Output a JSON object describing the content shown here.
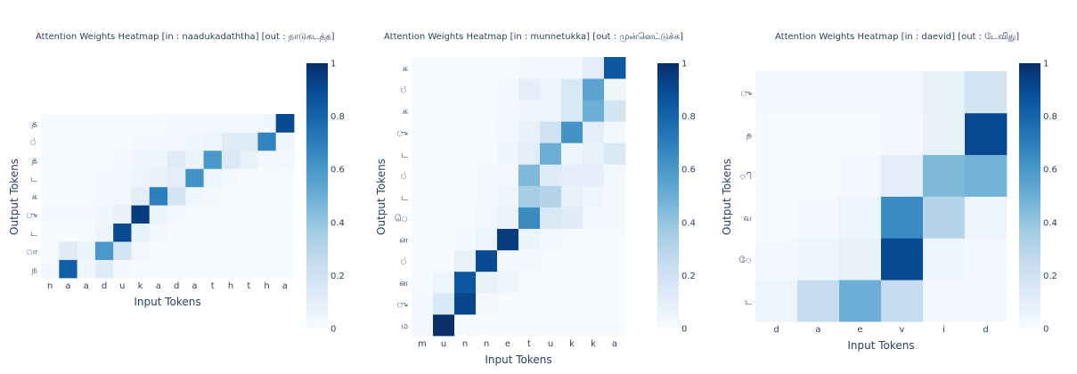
{
  "colorscale": [
    "#f7fbff",
    "#deebf7",
    "#c6dbef",
    "#9ecae1",
    "#6baed6",
    "#4292c6",
    "#2171b5",
    "#08519c",
    "#08306b"
  ],
  "chart_data": [
    {
      "type": "heatmap",
      "title": "Attention Weights Heatmap [in : naadukadaththa] [out : நாடுகடத்த]",
      "xlabel": "Input Tokens",
      "ylabel": "Output Tokens",
      "x": [
        "n",
        "a",
        "a",
        "d",
        "u",
        "k",
        "a",
        "d",
        "a",
        "t",
        "h",
        "t",
        "h",
        "a"
      ],
      "y": [
        "ந",
        "ா",
        "ட",
        "ு",
        "க",
        "ட",
        "த",
        "்",
        "த"
      ],
      "zrange": [
        0,
        1
      ],
      "colorbar_ticks": [
        0,
        0.2,
        0.4,
        0.6,
        0.8,
        1
      ],
      "z": [
        [
          0.02,
          0.82,
          0.04,
          0.12,
          0.02,
          0.01,
          0.01,
          0.01,
          0.01,
          0.01,
          0.01,
          0.01,
          0.01,
          0.01
        ],
        [
          0.01,
          0.12,
          0.06,
          0.6,
          0.18,
          0.03,
          0.01,
          0.01,
          0.01,
          0.01,
          0.01,
          0.01,
          0.01,
          0.01
        ],
        [
          0.01,
          0.01,
          0.01,
          0.05,
          0.9,
          0.08,
          0.02,
          0.01,
          0.01,
          0.01,
          0.01,
          0.01,
          0.01,
          0.01
        ],
        [
          0.02,
          0.02,
          0.02,
          0.04,
          0.08,
          0.95,
          0.06,
          0.02,
          0.01,
          0.01,
          0.01,
          0.01,
          0.01,
          0.01
        ],
        [
          0.01,
          0.01,
          0.01,
          0.02,
          0.03,
          0.1,
          0.7,
          0.18,
          0.04,
          0.02,
          0.01,
          0.01,
          0.01,
          0.01
        ],
        [
          0.01,
          0.01,
          0.01,
          0.02,
          0.03,
          0.05,
          0.08,
          0.1,
          0.62,
          0.05,
          0.02,
          0.01,
          0.01,
          0.01
        ],
        [
          0.01,
          0.01,
          0.01,
          0.01,
          0.02,
          0.04,
          0.05,
          0.12,
          0.06,
          0.6,
          0.14,
          0.08,
          0.02,
          0.03
        ],
        [
          0.01,
          0.01,
          0.01,
          0.01,
          0.01,
          0.02,
          0.02,
          0.03,
          0.04,
          0.05,
          0.12,
          0.12,
          0.68,
          0.04
        ],
        [
          0.01,
          0.01,
          0.01,
          0.01,
          0.01,
          0.01,
          0.01,
          0.02,
          0.02,
          0.03,
          0.03,
          0.02,
          0.04,
          0.9
        ]
      ]
    },
    {
      "type": "heatmap",
      "title": "Attention Weights Heatmap [in : munnetukka] [out : முன்னெட்டுக்க]",
      "xlabel": "Input Tokens",
      "ylabel": "Output Tokens",
      "x": [
        "m",
        "u",
        "n",
        "n",
        "e",
        "t",
        "u",
        "k",
        "k",
        "a"
      ],
      "y": [
        "ம",
        "ு",
        "ன",
        "்",
        "ன",
        "ெ",
        "ட",
        "்",
        "ட",
        "ு",
        "க",
        "்",
        "க"
      ],
      "zrange": [
        0,
        1
      ],
      "colorbar_ticks": [
        0,
        0.2,
        0.4,
        0.6,
        0.8,
        1
      ],
      "z": [
        [
          0.02,
          1.0,
          0.01,
          0.01,
          0.01,
          0.01,
          0.01,
          0.01,
          0.01,
          0.01
        ],
        [
          0.02,
          0.15,
          0.92,
          0.02,
          0.01,
          0.01,
          0.01,
          0.01,
          0.01,
          0.01
        ],
        [
          0.01,
          0.05,
          0.85,
          0.08,
          0.05,
          0.01,
          0.01,
          0.01,
          0.01,
          0.01
        ],
        [
          0.01,
          0.01,
          0.08,
          0.9,
          0.02,
          0.02,
          0.01,
          0.01,
          0.01,
          0.01
        ],
        [
          0.01,
          0.01,
          0.02,
          0.05,
          0.95,
          0.06,
          0.02,
          0.01,
          0.01,
          0.01
        ],
        [
          0.01,
          0.01,
          0.01,
          0.03,
          0.06,
          0.65,
          0.15,
          0.12,
          0.03,
          0.02
        ],
        [
          0.01,
          0.01,
          0.01,
          0.02,
          0.04,
          0.35,
          0.3,
          0.08,
          0.05,
          0.03
        ],
        [
          0.01,
          0.01,
          0.01,
          0.02,
          0.03,
          0.45,
          0.12,
          0.1,
          0.1,
          0.02
        ],
        [
          0.01,
          0.01,
          0.01,
          0.01,
          0.04,
          0.1,
          0.5,
          0.05,
          0.08,
          0.15
        ],
        [
          0.01,
          0.01,
          0.01,
          0.01,
          0.03,
          0.08,
          0.2,
          0.62,
          0.1,
          0.03
        ],
        [
          0.01,
          0.01,
          0.01,
          0.01,
          0.02,
          0.04,
          0.05,
          0.15,
          0.5,
          0.18
        ],
        [
          0.01,
          0.01,
          0.01,
          0.01,
          0.02,
          0.1,
          0.05,
          0.15,
          0.55,
          0.04
        ],
        [
          0.01,
          0.01,
          0.01,
          0.01,
          0.01,
          0.02,
          0.02,
          0.03,
          0.1,
          0.85
        ]
      ]
    },
    {
      "type": "heatmap",
      "title": "Attention Weights Heatmap [in : daevid] [out : டேவிது]",
      "xlabel": "Input Tokens",
      "ylabel": "Output Tokens",
      "x": [
        "d",
        "a",
        "e",
        "v",
        "i",
        "d"
      ],
      "y": [
        "ட",
        "ே",
        "வ",
        "ி",
        "த",
        "ு"
      ],
      "zrange": [
        0,
        1
      ],
      "colorbar_ticks": [
        0,
        0.2,
        0.4,
        0.6,
        0.8,
        1
      ],
      "z": [
        [
          0.05,
          0.25,
          0.5,
          0.25,
          0.02,
          0.02
        ],
        [
          0.02,
          0.05,
          0.08,
          0.9,
          0.05,
          0.02
        ],
        [
          0.01,
          0.02,
          0.05,
          0.65,
          0.3,
          0.05
        ],
        [
          0.01,
          0.01,
          0.02,
          0.1,
          0.45,
          0.48
        ],
        [
          0.01,
          0.01,
          0.01,
          0.02,
          0.08,
          0.9
        ],
        [
          0.02,
          0.02,
          0.02,
          0.03,
          0.08,
          0.18
        ]
      ]
    }
  ]
}
